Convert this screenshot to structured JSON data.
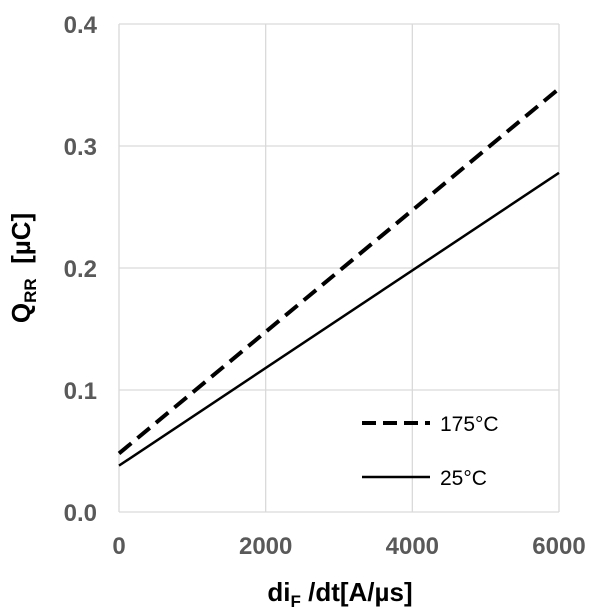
{
  "chart_data": {
    "type": "line",
    "xlabel": {
      "main": "di",
      "sub": "F",
      "rest": " /dt[A/µs]"
    },
    "ylabel": {
      "main": "Q",
      "sub": "RR",
      "rest": "  [µC]"
    },
    "xlim": [
      0,
      6000
    ],
    "ylim": [
      0,
      0.4
    ],
    "x_ticks": [
      "0",
      "2000",
      "4000",
      "6000"
    ],
    "y_ticks": [
      "0.0",
      "0.1",
      "0.2",
      "0.3",
      "0.4"
    ],
    "grid": true,
    "legend_position": "bottom-right",
    "series": [
      {
        "name": "175°C",
        "style": "dashed",
        "color": "#000000",
        "x": [
          0,
          6000
        ],
        "y": [
          0.048,
          0.347
        ]
      },
      {
        "name": "25°C",
        "style": "solid",
        "color": "#000000",
        "x": [
          0,
          6000
        ],
        "y": [
          0.038,
          0.278
        ]
      }
    ]
  }
}
